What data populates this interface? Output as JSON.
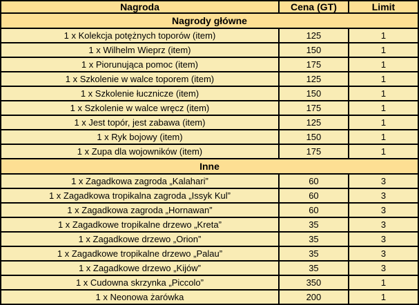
{
  "table": {
    "columns": [
      "Nagroda",
      "Cena (GT)",
      "Limit"
    ],
    "sections": [
      {
        "title": "Nagrody główne",
        "rows": [
          {
            "name": "1 x Kolekcja potężnych toporów (item)",
            "price": 125,
            "limit": 1
          },
          {
            "name": "1 x Wilhelm Wieprz (item)",
            "price": 150,
            "limit": 1
          },
          {
            "name": "1 x Piorunująca pomoc (item)",
            "price": 175,
            "limit": 1
          },
          {
            "name": "1 x Szkolenie w walce toporem (item)",
            "price": 125,
            "limit": 1
          },
          {
            "name": "1 x Szkolenie łucznicze (item)",
            "price": 150,
            "limit": 1
          },
          {
            "name": "1 x Szkolenie w walce wręcz (item)",
            "price": 175,
            "limit": 1
          },
          {
            "name": "1 x Jest topór, jest zabawa (item)",
            "price": 125,
            "limit": 1
          },
          {
            "name": "1 x Ryk bojowy (item)",
            "price": 150,
            "limit": 1
          },
          {
            "name": "1 x Zupa dla wojowników (item)",
            "price": 175,
            "limit": 1
          }
        ]
      },
      {
        "title": "Inne",
        "rows": [
          {
            "name": "1 x Zagadkowa zagroda „Kalahari”",
            "price": 60,
            "limit": 3
          },
          {
            "name": "1 x Zagadkowa tropikalna zagroda „Issyk Kul”",
            "price": 60,
            "limit": 3
          },
          {
            "name": "1 x Zagadkowa zagroda „Hornawan”",
            "price": 60,
            "limit": 3
          },
          {
            "name": "1 x Zagadkowe tropikalne drzewo „Kreta”",
            "price": 35,
            "limit": 3
          },
          {
            "name": "1 x Zagadkowe drzewo „Orion”",
            "price": 35,
            "limit": 3
          },
          {
            "name": "1 x Zagadkowe tropikalne drzewo „Palau”",
            "price": 35,
            "limit": 3
          },
          {
            "name": "1 x Zagadkowe drzewo „Kijów”",
            "price": 35,
            "limit": 3
          },
          {
            "name": "1 x Cudowna skrzynka „Piccolo”",
            "price": 350,
            "limit": 1
          },
          {
            "name": "1 x Neonowa żarówka",
            "price": 200,
            "limit": 1
          }
        ]
      }
    ],
    "colors": {
      "header_bg": "#FDDF93",
      "row_bg": "#F9ECB5",
      "border_color": "#000000",
      "text_color": "#000000"
    }
  }
}
